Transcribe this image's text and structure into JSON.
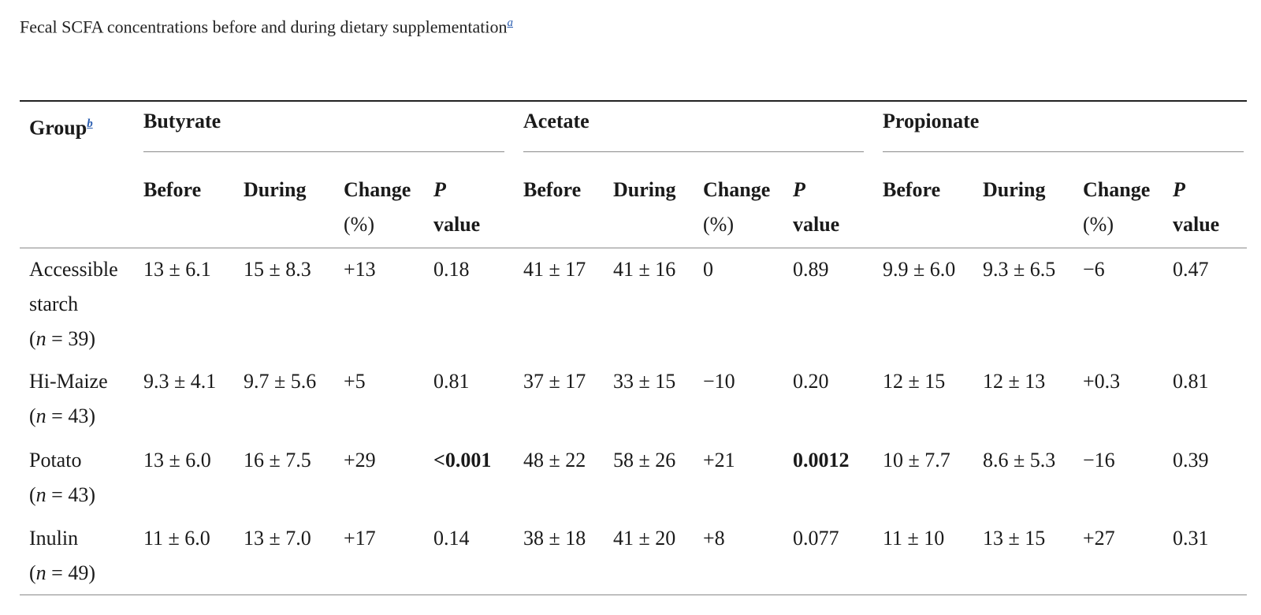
{
  "caption": {
    "text": "Fecal SCFA concentrations before and during dietary supplementation",
    "footnote": "a"
  },
  "header": {
    "group_label": "Group",
    "group_footnote": "b",
    "metrics": [
      "Butyrate",
      "Acetate",
      "Propionate"
    ],
    "sub": {
      "before": "Before",
      "during": "During",
      "change_1": "Change",
      "change_2": "(%)",
      "p_1": "P",
      "p_2": "value"
    }
  },
  "rows": [
    {
      "name": "Accessible starch",
      "n": "(n = 39)",
      "butyrate": [
        "13 ± 6.1",
        "15 ± 8.3",
        "+13",
        "0.18"
      ],
      "acetate": [
        "41 ± 17",
        "41 ± 16",
        "0",
        "0.89"
      ],
      "propionate": [
        "9.9 ± 6.0",
        "9.3 ± 6.5",
        "−6",
        "0.47"
      ]
    },
    {
      "name": "Hi-Maize",
      "n": "(n = 43)",
      "butyrate": [
        "9.3 ± 4.1",
        "9.7 ± 5.6",
        "+5",
        "0.81"
      ],
      "acetate": [
        "37 ± 17",
        "33 ± 15",
        "−10",
        "0.20"
      ],
      "propionate": [
        "12 ± 15",
        "12 ± 13",
        "+0.3",
        "0.81"
      ]
    },
    {
      "name": "Potato",
      "n": "(n = 43)",
      "butyrate": [
        "13 ± 6.0",
        "16 ± 7.5",
        "+29",
        "<0.001"
      ],
      "acetate": [
        "48 ± 22",
        "58 ± 26",
        "+21",
        "0.0012"
      ],
      "propionate": [
        "10 ± 7.7",
        "8.6 ± 5.3",
        "−16",
        "0.39"
      ]
    },
    {
      "name": "Inulin",
      "n": "(n = 49)",
      "butyrate": [
        "11 ± 6.0",
        "13 ± 7.0",
        "+17",
        "0.14"
      ],
      "acetate": [
        "38 ± 18",
        "41 ± 20",
        "+8",
        "0.077"
      ],
      "propionate": [
        "11 ± 10",
        "13 ± 15",
        "+27",
        "0.31"
      ]
    }
  ]
}
